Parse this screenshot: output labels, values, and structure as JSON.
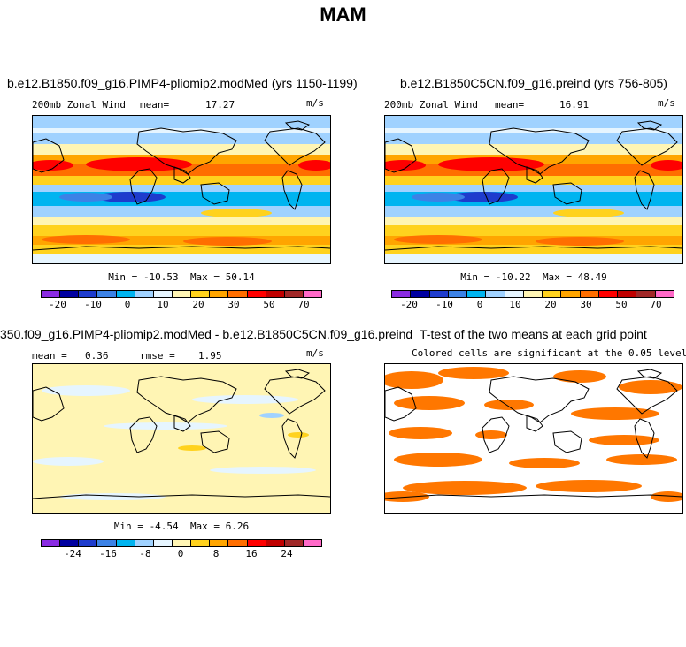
{
  "figure_title": "MAM",
  "colorbar_colors": [
    "#8a2be2",
    "#0000a0",
    "#1e3ccd",
    "#3c82e6",
    "#00b4f0",
    "#a0d2ff",
    "#e6f5ff",
    "#fff5b4",
    "#ffd21e",
    "#ffa500",
    "#ff6e00",
    "#ff0000",
    "#c00000",
    "#a02828",
    "#ff69c8"
  ],
  "map_colors": {
    "west_strong": "#3c82e6",
    "west_mid": "#00b4f0",
    "west_light": "#a0d2ff",
    "west_pale": "#e6f5ff",
    "east_pale": "#fff5b4",
    "east_light": "#ffd21e",
    "east_mid": "#ffa500",
    "east_strong": "#ff6e00",
    "jet_core": "#ff0000",
    "deep_west": "#1e3ccd",
    "sig": "#ff7700",
    "land": "#000000"
  },
  "chart_data": [
    {
      "type": "heatmap",
      "title": "b.e12.B1850.f09_g16.PIMP4-pliomip2.modMed (yrs 1150-1199)",
      "variable": "200mb Zonal Wind",
      "mean_label": "mean=",
      "mean": "17.27",
      "units": "m/s",
      "min_label": "Min =",
      "min": "-10.53",
      "max_label": "Max =",
      "max": "50.14",
      "colorbar_ticks": [
        "-20",
        "-10",
        "0",
        "10",
        "20",
        "30",
        "50",
        "70"
      ]
    },
    {
      "type": "heatmap",
      "title": "b.e12.B1850C5CN.f09_g16.preind (yrs 756-805)",
      "variable": "200mb Zonal Wind",
      "mean_label": "mean=",
      "mean": "16.91",
      "units": "m/s",
      "min_label": "Min =",
      "min": "-10.22",
      "max_label": "Max =",
      "max": "48.49",
      "colorbar_ticks": [
        "-20",
        "-10",
        "0",
        "10",
        "20",
        "30",
        "50",
        "70"
      ]
    },
    {
      "type": "heatmap",
      "title": "350.f09_g16.PIMP4-pliomip2.modMed - b.e12.B1850C5CN.f09_g16.preind",
      "mean_label": "mean =",
      "mean": "0.36",
      "rmse_label": "rmse =",
      "rmse": "1.95",
      "units": "m/s",
      "min_label": "Min =",
      "min": "-4.54",
      "max_label": "Max =",
      "max": "6.26",
      "colorbar_ticks": [
        "-24",
        "-16",
        "-8",
        "0",
        "8",
        "16",
        "24"
      ]
    },
    {
      "type": "heatmap",
      "title": "T-test of the two means at each grid point",
      "subtitle": "Colored cells are significant at the 0.05 level"
    }
  ]
}
